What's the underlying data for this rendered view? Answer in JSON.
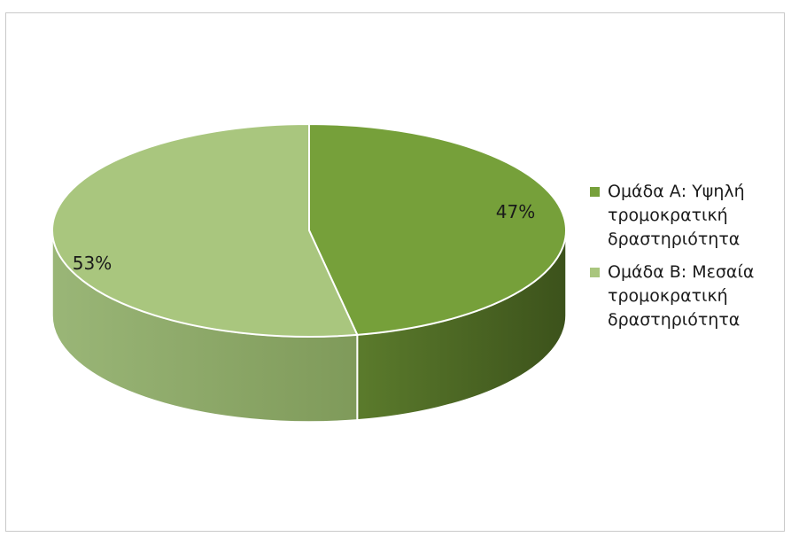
{
  "chart_data": {
    "type": "pie",
    "categories": [
      "Ομάδα Α: Υψηλή τρομοκρατική δραστηριότητα",
      "Ομάδα Β: Μεσαία τρομοκρατική δραστηριότητα"
    ],
    "values": [
      47,
      53
    ],
    "data_labels": [
      "47%",
      "53%"
    ],
    "colors": [
      "#76a03a",
      "#a9c67e"
    ],
    "side_colors": [
      "#4e6a24",
      "#8aa564"
    ],
    "legend_position": "right",
    "style": "3d-pie"
  },
  "legend": {
    "items": [
      {
        "label": "Ομάδα Α: Υψηλή τρομοκρατική δραστηριότητα",
        "color": "#76a03a"
      },
      {
        "label": "Ομάδα Β: Μεσαία τρομοκρατική δραστηριότητα",
        "color": "#a9c67e"
      }
    ]
  }
}
